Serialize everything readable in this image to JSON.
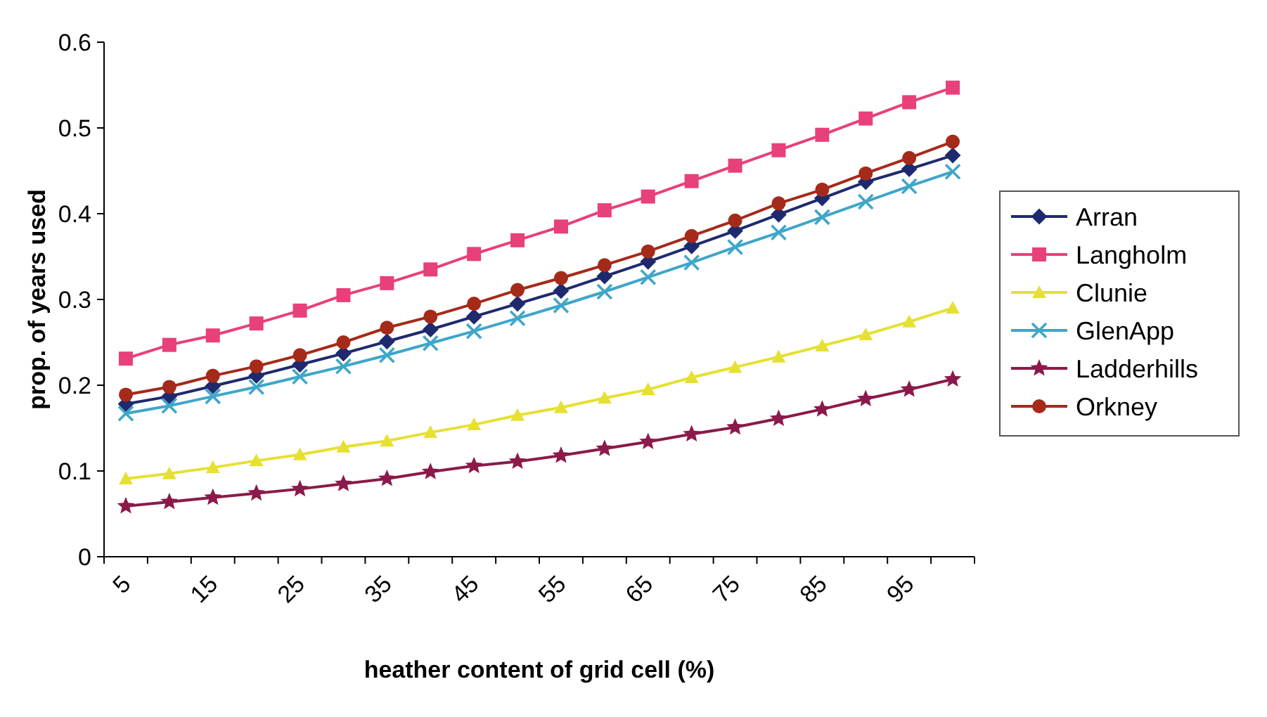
{
  "chart_data": {
    "type": "line",
    "xlabel": "heather content of grid cell (%)",
    "ylabel": "prop. of years used",
    "categories": [
      "5",
      null,
      "15",
      null,
      "25",
      null,
      "35",
      null,
      "45",
      null,
      "55",
      null,
      "65",
      null,
      "75",
      null,
      "85",
      null,
      "95",
      null
    ],
    "ylim": [
      0,
      0.6
    ],
    "yticks": [
      0,
      0.1,
      0.2,
      0.3,
      0.4,
      0.5,
      0.6
    ],
    "grid": false,
    "legend": "right",
    "line_style": "solid",
    "series": [
      {
        "name": "Arran",
        "color": "#1f2a6e",
        "marker": "diamond",
        "values": [
          0.178,
          0.187,
          0.199,
          0.211,
          0.224,
          0.237,
          0.251,
          0.265,
          0.28,
          0.295,
          0.31,
          0.327,
          0.344,
          0.362,
          0.38,
          0.399,
          0.418,
          0.437,
          0.452,
          0.468
        ]
      },
      {
        "name": "Langholm",
        "color": "#e8407a",
        "marker": "square",
        "values": [
          0.231,
          0.247,
          0.258,
          0.272,
          0.287,
          0.305,
          0.319,
          0.335,
          0.353,
          0.369,
          0.385,
          0.404,
          0.42,
          0.438,
          0.456,
          0.474,
          0.492,
          0.511,
          0.53,
          0.547
        ]
      },
      {
        "name": "Clunie",
        "color": "#e6e033",
        "marker": "triangle",
        "values": [
          0.091,
          0.097,
          0.104,
          0.112,
          0.119,
          0.128,
          0.135,
          0.145,
          0.154,
          0.165,
          0.174,
          0.185,
          0.195,
          0.209,
          0.221,
          0.233,
          0.246,
          0.259,
          0.274,
          0.29
        ]
      },
      {
        "name": "GlenApp",
        "color": "#3fa6c9",
        "marker": "cross",
        "values": [
          0.167,
          0.176,
          0.187,
          0.198,
          0.21,
          0.222,
          0.235,
          0.249,
          0.263,
          0.278,
          0.293,
          0.309,
          0.326,
          0.343,
          0.361,
          0.378,
          0.396,
          0.414,
          0.432,
          0.449
        ]
      },
      {
        "name": "Ladderhills",
        "color": "#8b1a4a",
        "marker": "star",
        "values": [
          0.059,
          0.064,
          0.069,
          0.074,
          0.079,
          0.085,
          0.091,
          0.099,
          0.106,
          0.111,
          0.118,
          0.126,
          0.134,
          0.143,
          0.151,
          0.161,
          0.172,
          0.184,
          0.195,
          0.207
        ]
      },
      {
        "name": "Orkney",
        "color": "#a52a1a",
        "marker": "circle",
        "values": [
          0.189,
          0.198,
          0.211,
          0.222,
          0.235,
          0.25,
          0.267,
          0.28,
          0.295,
          0.311,
          0.325,
          0.34,
          0.356,
          0.374,
          0.392,
          0.412,
          0.428,
          0.447,
          0.465,
          0.484
        ]
      }
    ]
  }
}
